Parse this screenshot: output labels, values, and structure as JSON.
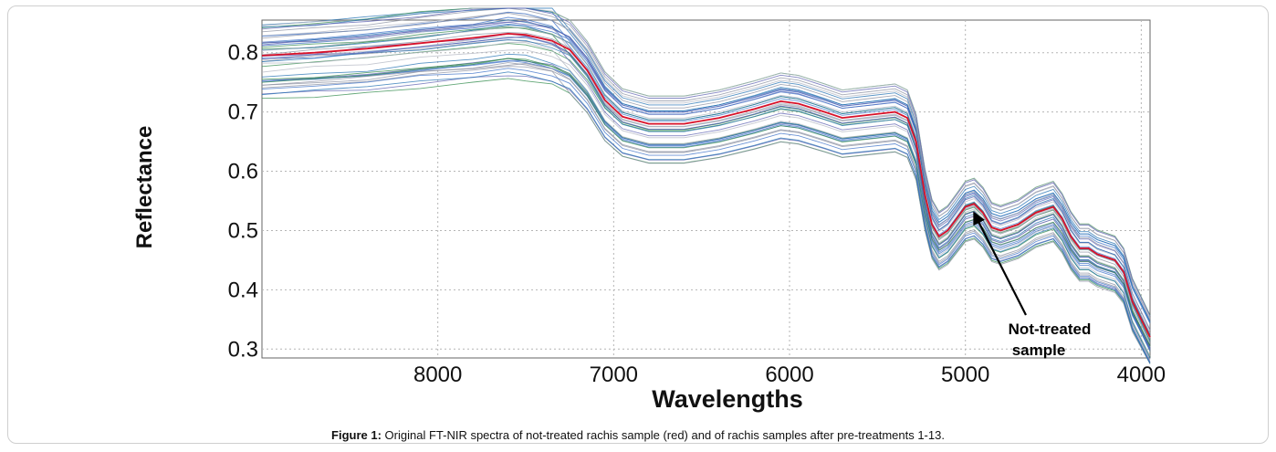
{
  "caption": {
    "label": "Figure 1:",
    "text": "Original FT-NIR spectra of not-treated rachis sample (red) and of rachis samples after pre-treatments 1-13."
  },
  "colors": {
    "highlight": "#d8122a",
    "series_palette": [
      "#3a6fc7",
      "#2f8a4a",
      "#5b5fb0",
      "#8a8fa0",
      "#b0b4c0",
      "#1f6fb2"
    ],
    "grid": "#b5b5b5"
  },
  "chart_data": {
    "type": "line",
    "title": "",
    "xlabel": "Wavelengths",
    "ylabel": "Reflectance",
    "xlim": [
      9000,
      3950
    ],
    "ylim": [
      0.285,
      0.855
    ],
    "x_reversed": true,
    "x_ticks": [
      8000,
      7000,
      6000,
      5000,
      4000
    ],
    "y_ticks": [
      0.3,
      0.4,
      0.5,
      0.6,
      0.7,
      0.8
    ],
    "grid": true,
    "annotation": {
      "text_line1": "Not-treated",
      "text_line2": "sample",
      "points_to": [
        4960,
        0.535
      ]
    },
    "x": [
      9000,
      8700,
      8400,
      8100,
      7800,
      7600,
      7500,
      7350,
      7250,
      7150,
      7050,
      6950,
      6800,
      6600,
      6400,
      6200,
      6050,
      5950,
      5800,
      5700,
      5550,
      5400,
      5330,
      5280,
      5230,
      5190,
      5150,
      5100,
      5050,
      5000,
      4950,
      4900,
      4850,
      4800,
      4700,
      4600,
      4500,
      4450,
      4400,
      4350,
      4300,
      4250,
      4200,
      4150,
      4100,
      4050,
      3950
    ],
    "reference_series": {
      "name": "Not-treated rachis sample",
      "values": [
        0.795,
        0.8,
        0.807,
        0.816,
        0.825,
        0.832,
        0.83,
        0.82,
        0.805,
        0.77,
        0.72,
        0.692,
        0.68,
        0.68,
        0.69,
        0.705,
        0.718,
        0.714,
        0.7,
        0.69,
        0.695,
        0.7,
        0.69,
        0.65,
        0.56,
        0.51,
        0.49,
        0.5,
        0.52,
        0.54,
        0.545,
        0.53,
        0.505,
        0.5,
        0.51,
        0.53,
        0.54,
        0.52,
        0.49,
        0.47,
        0.47,
        0.46,
        0.455,
        0.45,
        0.43,
        0.38,
        0.32
      ]
    }
  }
}
